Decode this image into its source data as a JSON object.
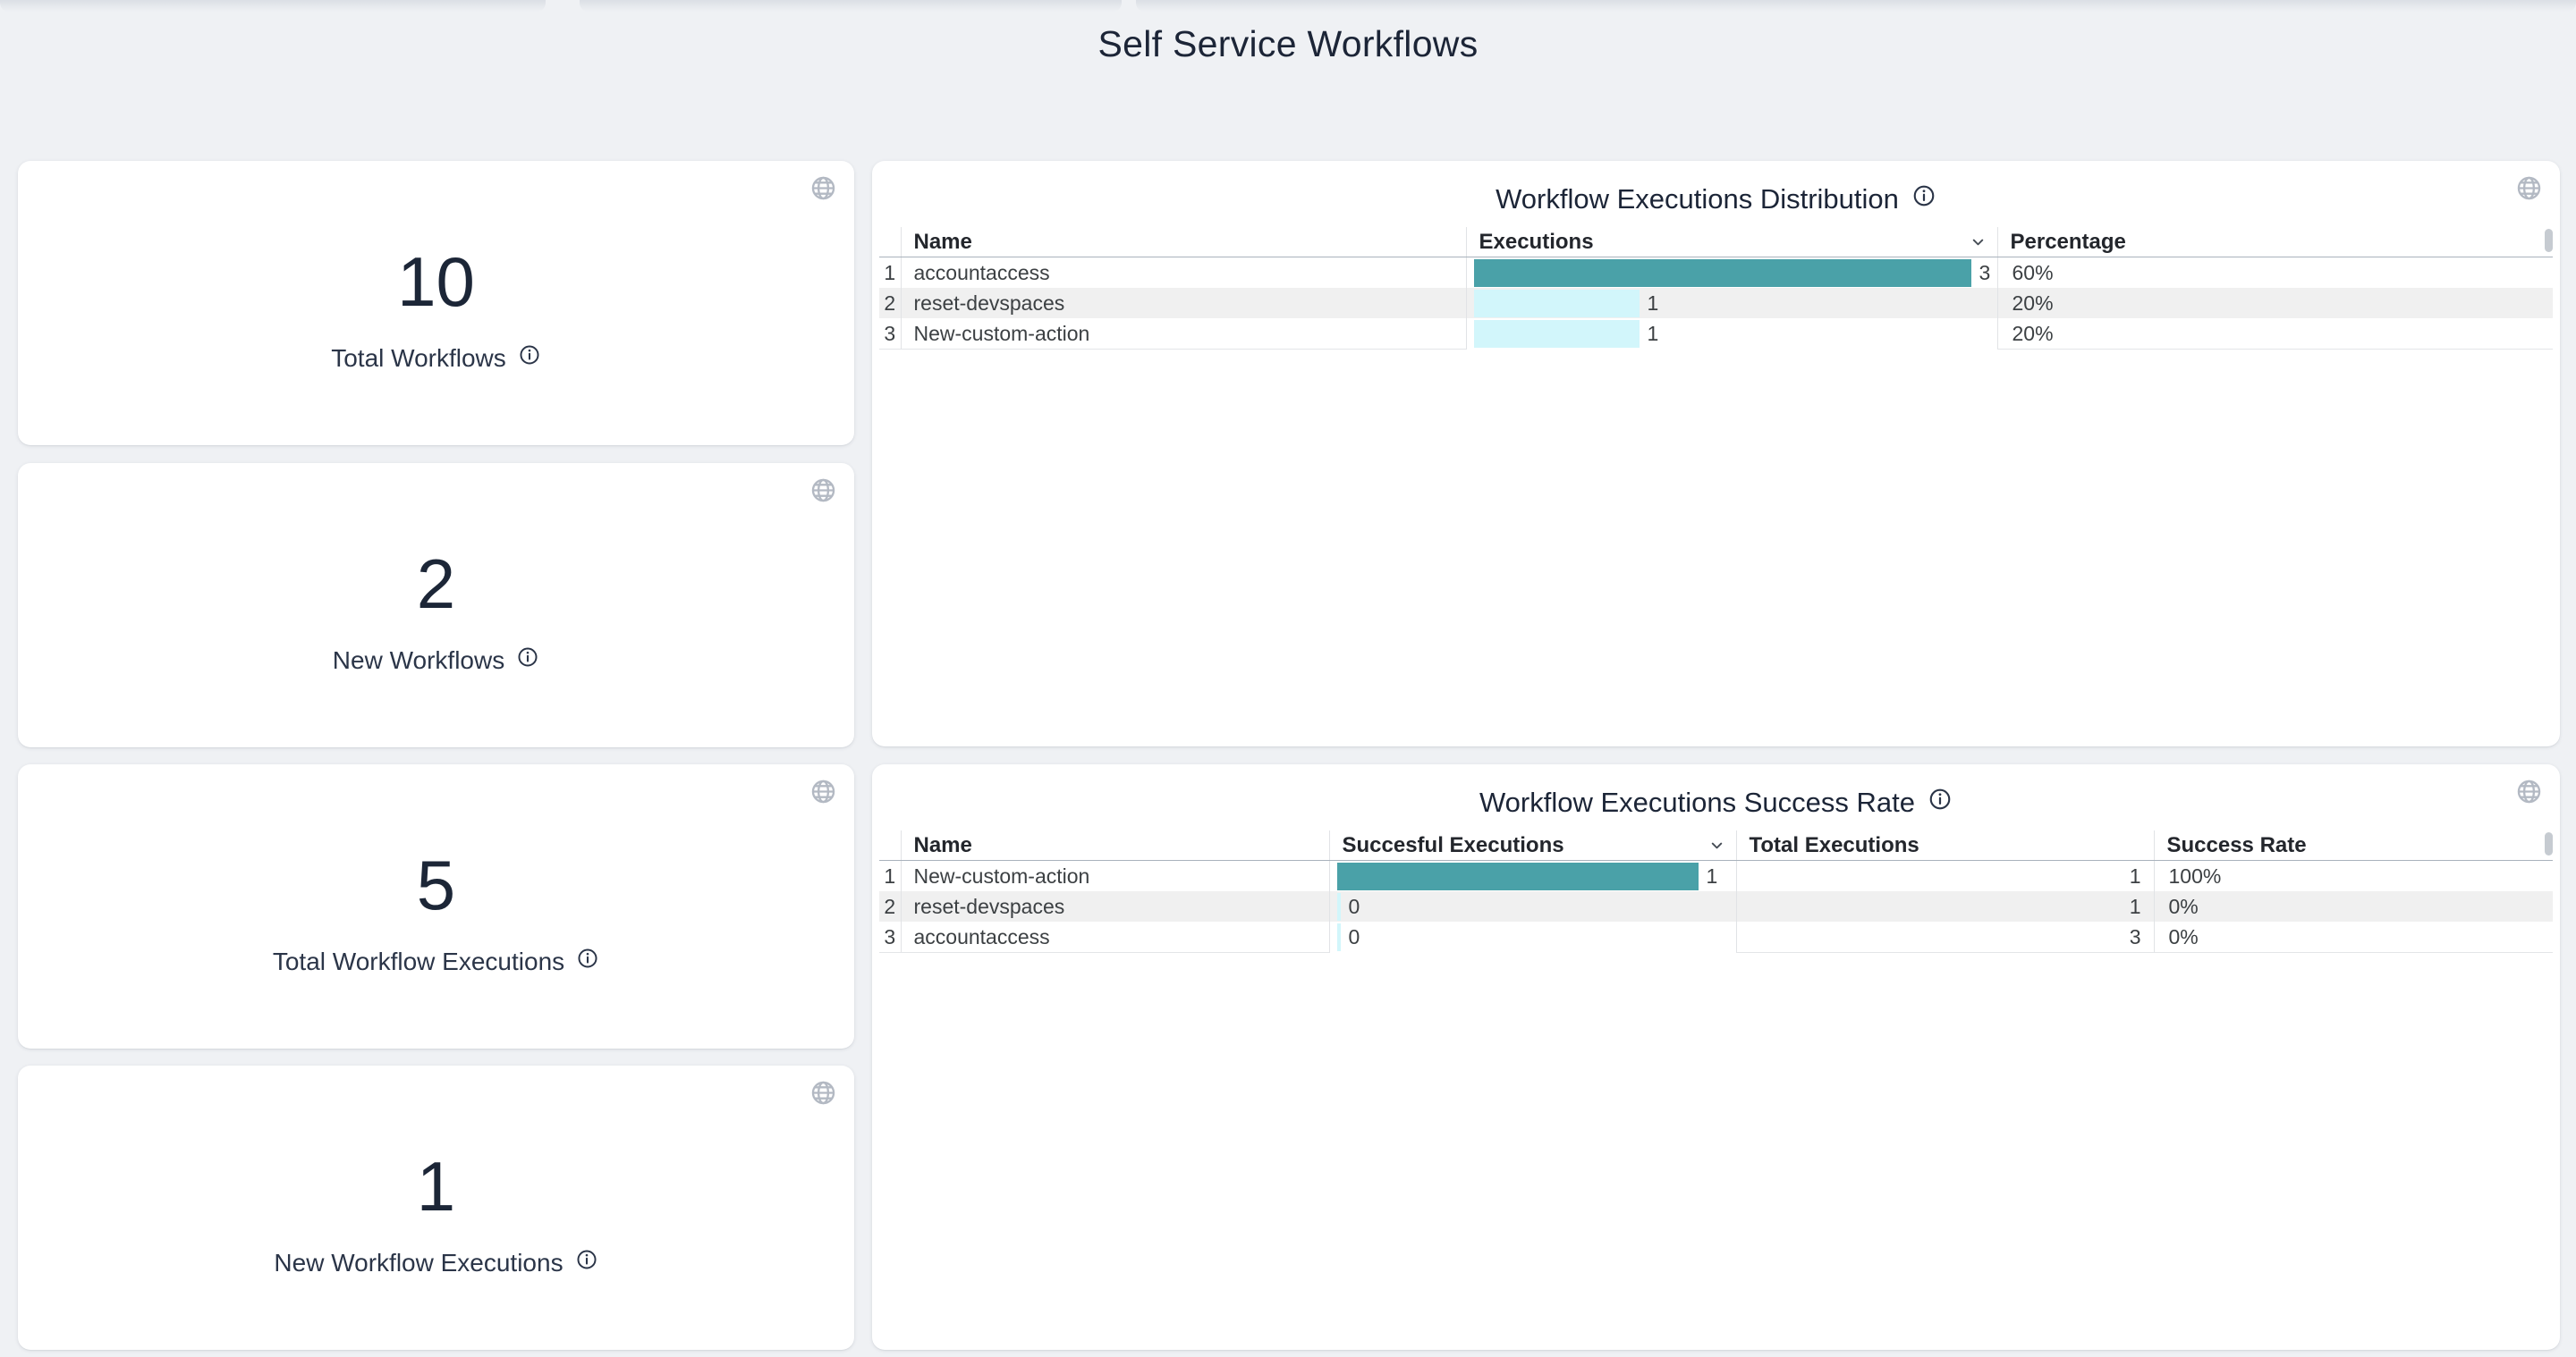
{
  "page": {
    "title": "Self Service Workflows"
  },
  "kpis": [
    {
      "value": "10",
      "label": "Total Workflows"
    },
    {
      "value": "2",
      "label": "New Workflows"
    },
    {
      "value": "5",
      "label": "Total Workflow Executions"
    },
    {
      "value": "1",
      "label": "New Workflow Executions"
    }
  ],
  "panels": [
    {
      "title": "Workflow Executions Distribution",
      "columns": [
        {
          "label": "Name",
          "key": "name"
        },
        {
          "label": "Executions",
          "key": "executions",
          "type": "bar",
          "sorted": true
        },
        {
          "label": "Percentage",
          "key": "percentage"
        }
      ],
      "rows": [
        {
          "index": "1",
          "name": "accountaccess",
          "executions": 3,
          "percentage": "60%"
        },
        {
          "index": "2",
          "name": "reset-devspaces",
          "executions": 1,
          "percentage": "20%"
        },
        {
          "index": "3",
          "name": "New-custom-action",
          "executions": 1,
          "percentage": "20%"
        }
      ]
    },
    {
      "title": "Workflow Executions Success Rate",
      "columns": [
        {
          "label": "Name",
          "key": "name"
        },
        {
          "label": "Succesful Executions",
          "key": "successful_executions",
          "type": "bar",
          "sorted": true
        },
        {
          "label": "Total Executions",
          "key": "total_executions",
          "align": "right"
        },
        {
          "label": "Success Rate",
          "key": "success_rate"
        }
      ],
      "rows": [
        {
          "index": "1",
          "name": "New-custom-action",
          "successful_executions": 1,
          "total_executions": 1,
          "success_rate": "100%"
        },
        {
          "index": "2",
          "name": "reset-devspaces",
          "successful_executions": 0,
          "total_executions": 1,
          "success_rate": "0%"
        },
        {
          "index": "3",
          "name": "accountaccess",
          "successful_executions": 0,
          "total_executions": 3,
          "success_rate": "0%"
        }
      ]
    }
  ],
  "colors": {
    "bar_primary": "#4AA1A8",
    "bar_secondary": "#D2F6FB",
    "accent_text": "#1C2537",
    "row_stripe": "#F0F0F0"
  },
  "icons": {
    "card_corner": "globe-icon",
    "label_suffix": "info-icon",
    "sorted_column": "chevron-down-icon"
  }
}
